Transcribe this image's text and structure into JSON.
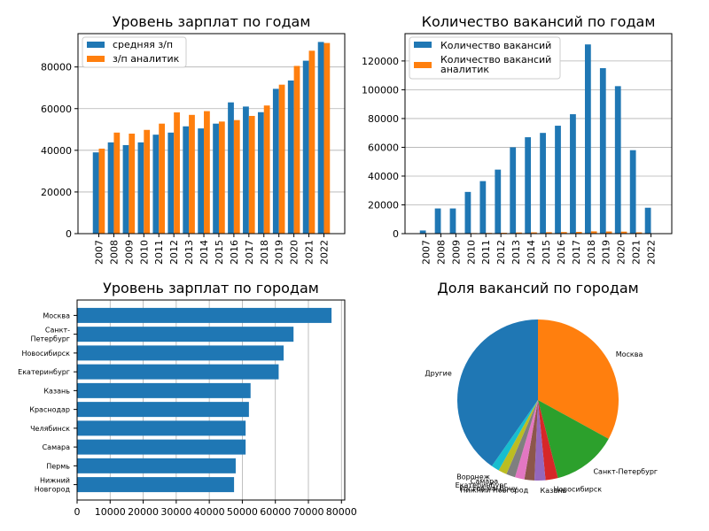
{
  "colors": {
    "blue": "#1f77b4",
    "orange": "#ff7f0e"
  },
  "chart_data": [
    {
      "type": "bar",
      "title": "Уровень зарплат по годам",
      "categories": [
        "2007",
        "2008",
        "2009",
        "2010",
        "2011",
        "2012",
        "2013",
        "2014",
        "2015",
        "2016",
        "2017",
        "2018",
        "2019",
        "2020",
        "2021",
        "2022"
      ],
      "series": [
        {
          "name": "средняя з/п",
          "color": "#1f77b4",
          "values": [
            39000,
            43800,
            42500,
            43800,
            47500,
            48500,
            51500,
            50500,
            52800,
            63000,
            61000,
            58300,
            69500,
            73500,
            83000,
            92000
          ]
        },
        {
          "name": "з/п аналитик",
          "color": "#ff7f0e",
          "values": [
            40800,
            48500,
            48000,
            49800,
            52800,
            58200,
            57000,
            58800,
            53800,
            54500,
            56500,
            61500,
            71500,
            80500,
            87800,
            91500
          ]
        }
      ],
      "ylim": [
        0,
        96000
      ],
      "yticks": [
        0,
        20000,
        40000,
        60000,
        80000
      ],
      "grid": "y",
      "legend": "top-left"
    },
    {
      "type": "bar",
      "title": "Количество вакансий по годам",
      "categories": [
        "2007",
        "2008",
        "2009",
        "2010",
        "2011",
        "2012",
        "2013",
        "2014",
        "2015",
        "2016",
        "2017",
        "2018",
        "2019",
        "2020",
        "2021",
        "2022"
      ],
      "series": [
        {
          "name": "Количество вакансий",
          "color": "#1f77b4",
          "values": [
            2200,
            17500,
            17500,
            29000,
            36500,
            44500,
            60000,
            67000,
            70000,
            75000,
            83000,
            131500,
            115000,
            102500,
            58000,
            18000
          ]
        },
        {
          "name": "Количество вакансий аналитик",
          "color": "#ff7f0e",
          "values": [
            50,
            300,
            300,
            400,
            500,
            600,
            800,
            900,
            1000,
            1100,
            1200,
            1600,
            1500,
            1400,
            900,
            300
          ]
        }
      ],
      "ylim": [
        0,
        139000
      ],
      "yticks": [
        0,
        20000,
        40000,
        60000,
        80000,
        100000,
        120000
      ],
      "grid": "y",
      "legend": "top-left"
    },
    {
      "type": "bar",
      "orientation": "horizontal",
      "title": "Уровень зарплат по городам",
      "categories": [
        "Москва",
        "Санкт-Петербург",
        "Новосибирск",
        "Екатеринбург",
        "Казань",
        "Краснодар",
        "Челябинск",
        "Самара",
        "Пермь",
        "Нижний Новгород"
      ],
      "category_lines": [
        [
          "Москва"
        ],
        [
          "Санкт-",
          "Петербург"
        ],
        [
          "Новосибирск"
        ],
        [
          "Екатеринбург"
        ],
        [
          "Казань"
        ],
        [
          "Краснодар"
        ],
        [
          "Челябинск"
        ],
        [
          "Самара"
        ],
        [
          "Пермь"
        ],
        [
          "Нижний",
          "Новгород"
        ]
      ],
      "values": [
        77000,
        65500,
        62500,
        61000,
        52500,
        52000,
        51000,
        51000,
        48000,
        47500
      ],
      "color": "#1f77b4",
      "xlim": [
        0,
        81000
      ],
      "xticks": [
        0,
        10000,
        20000,
        30000,
        40000,
        50000,
        60000,
        70000,
        80000
      ],
      "grid": "x"
    },
    {
      "type": "pie",
      "title": "Доля вакансий по городам",
      "slices": [
        {
          "label": "Москва",
          "value": 33.0,
          "color": "#ff7f0e"
        },
        {
          "label": "Санкт-Петербург",
          "value": 13.0,
          "color": "#2ca02c"
        },
        {
          "label": "Новосибирск",
          "value": 2.5,
          "color": "#d62728"
        },
        {
          "label": "Казань",
          "value": 2.2,
          "color": "#9467bd"
        },
        {
          "label": "Нижний Новгород",
          "value": 2.0,
          "color": "#8c564b"
        },
        {
          "label": "Ростов-на-Дону",
          "value": 1.9,
          "color": "#e377c2"
        },
        {
          "label": "Екатеринбург",
          "value": 1.8,
          "color": "#7f7f7f"
        },
        {
          "label": "Самара",
          "value": 1.7,
          "color": "#bcbd22"
        },
        {
          "label": "Воронеж",
          "value": 1.6,
          "color": "#17becf"
        },
        {
          "label": "Другие",
          "value": 40.3,
          "color": "#1f77b4"
        }
      ],
      "startangle": 90,
      "direction": "clockwise"
    }
  ]
}
